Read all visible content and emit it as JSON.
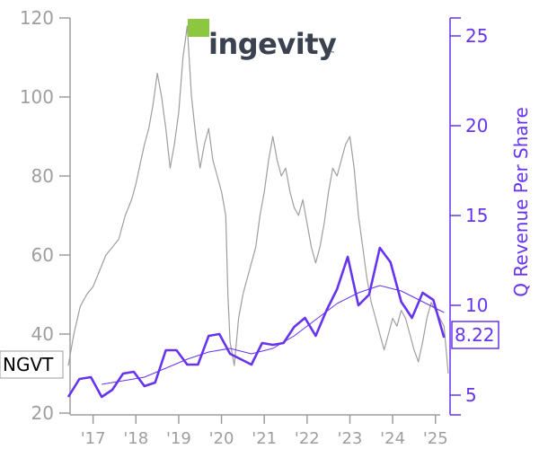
{
  "chart_data": {
    "type": "line",
    "logo": {
      "text": "ingevity",
      "mark": "™",
      "square_color": "#8dc63f"
    },
    "ticker": "NGVT",
    "last_value_label": "8.22",
    "x_tick_labels": [
      "'17",
      "'18",
      "'19",
      "'20",
      "'21",
      "'22",
      "'23",
      "'24",
      "'25"
    ],
    "x_tick_years": [
      2017,
      2018,
      2019,
      2020,
      2021,
      2022,
      2023,
      2024,
      2025
    ],
    "xlim": [
      2016.42,
      2025.32
    ],
    "y_left": {
      "ticks": [
        20,
        40,
        60,
        80,
        100,
        120
      ],
      "ylim": [
        20,
        120
      ],
      "color": "#9e9e9e"
    },
    "y_right": {
      "label": "Q Revenue Per Share",
      "ticks": [
        5,
        10,
        15,
        20,
        25
      ],
      "ylim": [
        4,
        26
      ],
      "color": "#6633ee"
    },
    "series": [
      {
        "role": "stock_price",
        "axis": "left",
        "color": "#9e9e9e",
        "points": [
          [
            2016.42,
            32
          ],
          [
            2016.55,
            40
          ],
          [
            2016.7,
            47
          ],
          [
            2016.85,
            50
          ],
          [
            2017.0,
            52
          ],
          [
            2017.15,
            56
          ],
          [
            2017.3,
            60
          ],
          [
            2017.45,
            62
          ],
          [
            2017.6,
            64
          ],
          [
            2017.75,
            70
          ],
          [
            2017.9,
            74
          ],
          [
            2018.0,
            78
          ],
          [
            2018.1,
            83
          ],
          [
            2018.2,
            88
          ],
          [
            2018.3,
            92
          ],
          [
            2018.4,
            98
          ],
          [
            2018.5,
            106
          ],
          [
            2018.6,
            100
          ],
          [
            2018.7,
            92
          ],
          [
            2018.8,
            82
          ],
          [
            2018.9,
            88
          ],
          [
            2019.0,
            96
          ],
          [
            2019.1,
            110
          ],
          [
            2019.2,
            118
          ],
          [
            2019.3,
            100
          ],
          [
            2019.4,
            90
          ],
          [
            2019.5,
            82
          ],
          [
            2019.6,
            88
          ],
          [
            2019.7,
            92
          ],
          [
            2019.8,
            84
          ],
          [
            2019.9,
            80
          ],
          [
            2020.0,
            76
          ],
          [
            2020.1,
            70
          ],
          [
            2020.15,
            50
          ],
          [
            2020.2,
            38
          ],
          [
            2020.3,
            32
          ],
          [
            2020.4,
            44
          ],
          [
            2020.5,
            50
          ],
          [
            2020.6,
            54
          ],
          [
            2020.7,
            58
          ],
          [
            2020.8,
            62
          ],
          [
            2020.9,
            70
          ],
          [
            2021.0,
            76
          ],
          [
            2021.1,
            84
          ],
          [
            2021.2,
            90
          ],
          [
            2021.3,
            84
          ],
          [
            2021.4,
            80
          ],
          [
            2021.5,
            82
          ],
          [
            2021.6,
            76
          ],
          [
            2021.7,
            72
          ],
          [
            2021.8,
            70
          ],
          [
            2021.9,
            74
          ],
          [
            2022.0,
            68
          ],
          [
            2022.1,
            62
          ],
          [
            2022.2,
            58
          ],
          [
            2022.3,
            62
          ],
          [
            2022.4,
            68
          ],
          [
            2022.5,
            76
          ],
          [
            2022.6,
            82
          ],
          [
            2022.7,
            80
          ],
          [
            2022.8,
            84
          ],
          [
            2022.9,
            88
          ],
          [
            2023.0,
            90
          ],
          [
            2023.1,
            82
          ],
          [
            2023.2,
            70
          ],
          [
            2023.3,
            62
          ],
          [
            2023.4,
            54
          ],
          [
            2023.5,
            48
          ],
          [
            2023.6,
            44
          ],
          [
            2023.7,
            40
          ],
          [
            2023.8,
            36
          ],
          [
            2023.9,
            40
          ],
          [
            2024.0,
            44
          ],
          [
            2024.1,
            42
          ],
          [
            2024.2,
            46
          ],
          [
            2024.3,
            44
          ],
          [
            2024.4,
            40
          ],
          [
            2024.5,
            36
          ],
          [
            2024.6,
            33
          ],
          [
            2024.7,
            38
          ],
          [
            2024.8,
            44
          ],
          [
            2024.9,
            48
          ],
          [
            2025.0,
            46
          ],
          [
            2025.1,
            44
          ],
          [
            2025.2,
            42
          ],
          [
            2025.3,
            30
          ]
        ]
      },
      {
        "role": "q_revenue_per_share",
        "axis": "right",
        "color": "#6633ee",
        "points": [
          [
            2016.42,
            4.9
          ],
          [
            2016.68,
            5.9
          ],
          [
            2016.95,
            6.0
          ],
          [
            2017.2,
            4.9
          ],
          [
            2017.45,
            5.3
          ],
          [
            2017.7,
            6.2
          ],
          [
            2017.95,
            6.3
          ],
          [
            2018.2,
            5.5
          ],
          [
            2018.45,
            5.7
          ],
          [
            2018.7,
            7.5
          ],
          [
            2018.95,
            7.5
          ],
          [
            2019.2,
            6.7
          ],
          [
            2019.45,
            6.7
          ],
          [
            2019.7,
            8.3
          ],
          [
            2019.95,
            8.4
          ],
          [
            2020.2,
            7.3
          ],
          [
            2020.45,
            7.0
          ],
          [
            2020.7,
            6.7
          ],
          [
            2020.95,
            7.9
          ],
          [
            2021.2,
            7.8
          ],
          [
            2021.45,
            7.9
          ],
          [
            2021.7,
            8.8
          ],
          [
            2021.95,
            9.3
          ],
          [
            2022.2,
            8.3
          ],
          [
            2022.45,
            9.7
          ],
          [
            2022.7,
            10.9
          ],
          [
            2022.95,
            12.7
          ],
          [
            2023.2,
            10.0
          ],
          [
            2023.45,
            10.6
          ],
          [
            2023.7,
            13.2
          ],
          [
            2023.95,
            12.4
          ],
          [
            2024.2,
            10.2
          ],
          [
            2024.45,
            9.3
          ],
          [
            2024.7,
            10.7
          ],
          [
            2024.95,
            10.3
          ],
          [
            2025.2,
            8.2
          ]
        ]
      },
      {
        "role": "q_revenue_per_share_trend",
        "axis": "right",
        "color": "#6633ee",
        "points": [
          [
            2017.2,
            5.6
          ],
          [
            2017.7,
            5.8
          ],
          [
            2018.2,
            6.0
          ],
          [
            2018.7,
            6.5
          ],
          [
            2019.2,
            7.0
          ],
          [
            2019.7,
            7.4
          ],
          [
            2020.2,
            7.6
          ],
          [
            2020.7,
            7.3
          ],
          [
            2021.2,
            7.6
          ],
          [
            2021.7,
            8.3
          ],
          [
            2022.2,
            9.2
          ],
          [
            2022.7,
            10.1
          ],
          [
            2023.2,
            10.7
          ],
          [
            2023.7,
            11.1
          ],
          [
            2024.2,
            10.8
          ],
          [
            2024.7,
            10.2
          ],
          [
            2025.2,
            9.6
          ]
        ]
      }
    ]
  }
}
